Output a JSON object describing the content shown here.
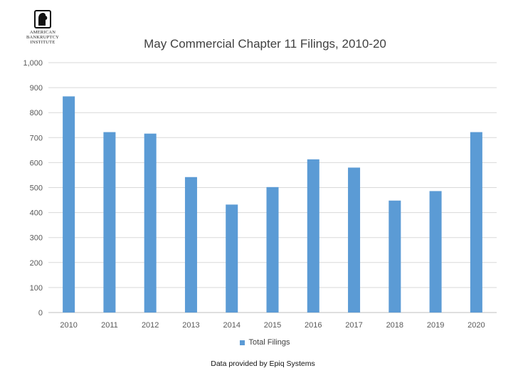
{
  "logo": {
    "lines": [
      "AMERICAN",
      "BANKRUPTCY",
      "INSTITUTE"
    ]
  },
  "footnote": "Data provided by Epiq Systems",
  "chart_data": {
    "type": "bar",
    "title": "May Commercial Chapter 11 Filings, 2010-20",
    "xlabel": "",
    "ylabel": "",
    "categories": [
      "2010",
      "2011",
      "2012",
      "2013",
      "2014",
      "2015",
      "2016",
      "2017",
      "2018",
      "2019",
      "2020"
    ],
    "series": [
      {
        "name": "Total Filings",
        "color": "#5b9bd5",
        "values": [
          865,
          722,
          716,
          542,
          432,
          502,
          613,
          580,
          448,
          486,
          722
        ]
      }
    ],
    "ylim": [
      0,
      1000
    ],
    "yticks": [
      "0",
      "100",
      "200",
      "300",
      "400",
      "500",
      "600",
      "700",
      "800",
      "900",
      "1,000"
    ],
    "grid": true,
    "legend_position": "bottom"
  }
}
